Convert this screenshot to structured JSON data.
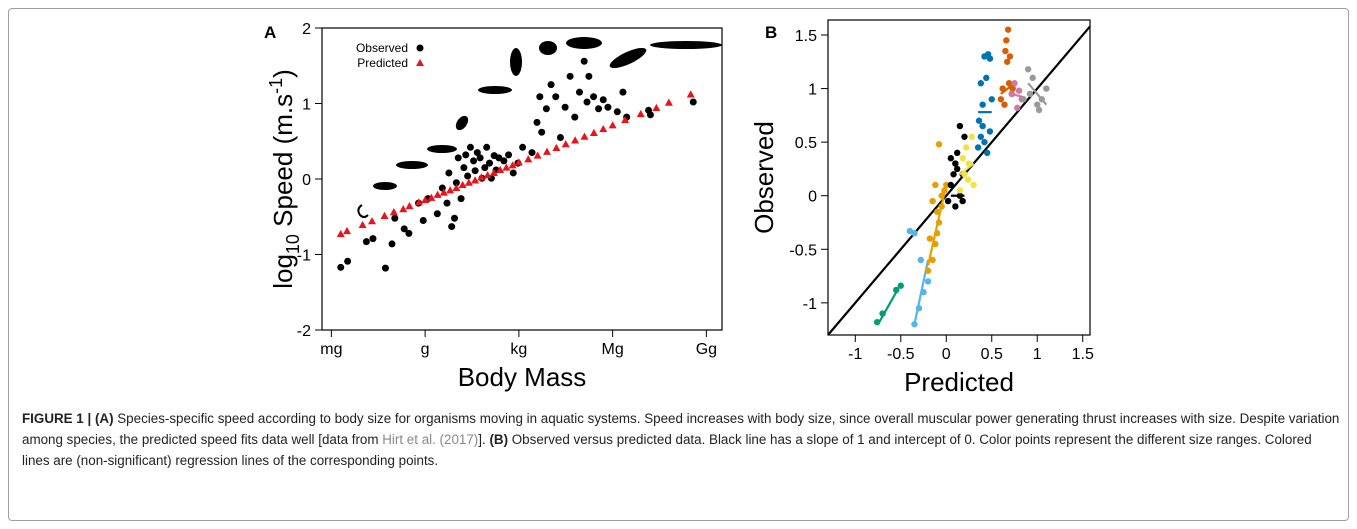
{
  "chart_data": [
    {
      "type": "scatter",
      "panel_label": "A",
      "xlabel": "Body Mass",
      "ylabel": {
        "base": "log",
        "sub": "10",
        "mid": " Speed (m.s",
        "sup": "-1",
        "end": ")"
      },
      "xlim": [
        -3.3,
        9.5
      ],
      "ylim": [
        -2,
        2
      ],
      "xticks": [
        {
          "value": -3,
          "label": "mg"
        },
        {
          "value": 0,
          "label": "g"
        },
        {
          "value": 3,
          "label": "kg"
        },
        {
          "value": 6,
          "label": "Mg"
        },
        {
          "value": 9,
          "label": "Gg"
        }
      ],
      "yticks": [
        -2,
        -1,
        0,
        1,
        2
      ],
      "legend": "upper left",
      "series": [
        {
          "name": "Observed",
          "color": "#000000",
          "marker": "circle",
          "x": [
            -2.7,
            -2.48,
            -1.88,
            -1.67,
            -1.27,
            -1.06,
            -0.97,
            -0.67,
            -0.52,
            -0.21,
            -0.06,
            0.09,
            0.39,
            0.55,
            0.7,
            0.76,
            0.85,
            0.94,
            1.0,
            1.06,
            1.15,
            1.24,
            1.3,
            1.36,
            1.45,
            1.55,
            1.6,
            1.67,
            1.76,
            1.82,
            1.91,
            1.97,
            2.06,
            2.12,
            2.21,
            2.27,
            2.36,
            2.52,
            2.67,
            2.82,
            2.97,
            3.12,
            3.42,
            3.58,
            3.67,
            3.73,
            3.88,
            4.03,
            4.18,
            4.33,
            4.48,
            4.64,
            4.79,
            4.94,
            5.09,
            5.18,
            5.24,
            5.39,
            5.55,
            5.7,
            5.85,
            6.15,
            6.33,
            6.45,
            7.15,
            7.21,
            8.58
          ],
          "y": [
            -1.17,
            -1.09,
            -0.83,
            -0.79,
            -1.18,
            -0.86,
            -0.52,
            -0.66,
            -0.72,
            -0.32,
            -0.55,
            -0.26,
            -0.46,
            -0.12,
            -0.32,
            0.08,
            -0.63,
            -0.52,
            -0.05,
            0.28,
            -0.26,
            0.15,
            0.32,
            0.04,
            0.42,
            0.24,
            0.11,
            0.35,
            0.28,
            0.01,
            0.15,
            0.42,
            0.21,
            0.01,
            0.31,
            0.12,
            0.28,
            0.24,
            0.32,
            0.08,
            0.21,
            0.42,
            0.35,
            0.75,
            1.09,
            0.62,
            0.93,
            1.25,
            1.09,
            0.55,
            0.95,
            1.36,
            0.82,
            1.15,
            1.56,
            1.02,
            1.36,
            1.09,
            0.93,
            1.05,
            0.95,
            0.89,
            1.15,
            0.82,
            0.91,
            0.85,
            1.02
          ]
        },
        {
          "name": "Predicted",
          "color": "#e8141c",
          "marker": "triangle",
          "x": [
            -2.7,
            -2.5,
            -2.0,
            -1.7,
            -1.3,
            -1.0,
            -0.7,
            -0.5,
            -0.2,
            0.0,
            0.2,
            0.4,
            0.6,
            0.8,
            1.0,
            1.2,
            1.4,
            1.6,
            1.8,
            2.0,
            2.2,
            2.4,
            2.6,
            2.8,
            3.0,
            3.3,
            3.6,
            3.9,
            4.2,
            4.5,
            4.8,
            5.1,
            5.4,
            5.7,
            6.0,
            6.4,
            6.9,
            7.4,
            7.8,
            8.5
          ],
          "y": [
            -0.73,
            -0.69,
            -0.61,
            -0.56,
            -0.49,
            -0.44,
            -0.4,
            -0.36,
            -0.31,
            -0.28,
            -0.25,
            -0.21,
            -0.18,
            -0.15,
            -0.12,
            -0.08,
            -0.05,
            -0.02,
            0.02,
            0.05,
            0.08,
            0.12,
            0.15,
            0.18,
            0.22,
            0.26,
            0.31,
            0.36,
            0.41,
            0.46,
            0.51,
            0.56,
            0.61,
            0.66,
            0.71,
            0.78,
            0.86,
            0.94,
            1.01,
            1.12
          ]
        }
      ]
    },
    {
      "type": "scatter",
      "panel_label": "B",
      "xlabel": "Predicted",
      "ylabel": "Observed",
      "xlim": [
        -1.3,
        1.58
      ],
      "ylim": [
        -1.3,
        1.64
      ],
      "xticks": [
        -1,
        -0.5,
        0,
        0.5,
        1,
        1.5
      ],
      "yticks": [
        -1,
        -0.5,
        0,
        0.5,
        1,
        1.5
      ],
      "reference_line": {
        "slope": 1,
        "intercept": 0,
        "color": "#000000"
      },
      "series": [
        {
          "color": "#009e73",
          "x": [
            -0.76,
            -0.7,
            -0.55,
            -0.5
          ],
          "y": [
            -1.18,
            -1.1,
            -0.88,
            -0.84
          ],
          "fit_x": [
            -0.75,
            -0.55
          ],
          "fit_y": [
            -1.2,
            -0.9
          ]
        },
        {
          "color": "#56b4e9",
          "x": [
            -0.35,
            -0.3,
            -0.25,
            -0.2,
            -0.28,
            -0.35,
            -0.4
          ],
          "y": [
            -1.2,
            -1.05,
            -0.9,
            -0.8,
            -0.6,
            -0.35,
            -0.33
          ],
          "fit_x": [
            -0.35,
            -0.2
          ],
          "fit_y": [
            -1.2,
            -0.6
          ]
        },
        {
          "color": "#e69f00",
          "x": [
            -0.2,
            -0.15,
            -0.12,
            -0.1,
            -0.08,
            -0.05,
            -0.18,
            -0.1,
            -0.05,
            -0.02,
            0.0,
            -0.12,
            -0.08,
            -0.15
          ],
          "y": [
            -0.7,
            -0.6,
            -0.45,
            -0.35,
            -0.25,
            -0.1,
            -0.4,
            -0.15,
            0.0,
            0.05,
            0.1,
            0.1,
            0.48,
            -0.05
          ],
          "fit_x": [
            -0.2,
            0.0
          ],
          "fit_y": [
            -0.65,
            0.1
          ]
        },
        {
          "color": "#000000",
          "x": [
            0.02,
            0.05,
            0.08,
            0.1,
            0.12,
            0.15,
            0.18,
            0.2,
            0.05,
            0.1,
            0.15,
            0.12,
            0.18
          ],
          "y": [
            -0.05,
            0.1,
            0.2,
            0.3,
            0.4,
            0.65,
            0.2,
            0.55,
            0.35,
            -0.1,
            0.0,
            0.25,
            -0.05
          ],
          "fit_x": [
            0.05,
            0.2
          ],
          "fit_y": [
            0.0,
            0.0
          ]
        },
        {
          "color": "#f0e442",
          "x": [
            0.15,
            0.2,
            0.22,
            0.25,
            0.28,
            0.3,
            0.18,
            0.24
          ],
          "y": [
            0.05,
            0.2,
            0.45,
            0.3,
            0.55,
            0.1,
            0.35,
            0.15
          ],
          "fit_x": [
            0.15,
            0.3
          ],
          "fit_y": [
            0.2,
            0.3
          ]
        },
        {
          "color": "#0072b2",
          "x": [
            0.35,
            0.38,
            0.4,
            0.42,
            0.45,
            0.48,
            0.5,
            0.38,
            0.42,
            0.46,
            0.4,
            0.36,
            0.44,
            0.48
          ],
          "y": [
            0.45,
            0.55,
            0.65,
            0.5,
            0.4,
            0.6,
            0.9,
            1.05,
            1.3,
            1.32,
            0.85,
            0.7,
            1.1,
            1.28
          ],
          "fit_x": [
            0.35,
            0.5
          ],
          "fit_y": [
            0.78,
            0.78
          ]
        },
        {
          "color": "#d55e00",
          "x": [
            0.6,
            0.62,
            0.65,
            0.66,
            0.68,
            0.7,
            0.72,
            0.64,
            0.69,
            0.67,
            0.73
          ],
          "y": [
            0.9,
            1.0,
            1.35,
            1.45,
            1.55,
            1.3,
            0.95,
            0.85,
            1.05,
            1.25,
            1.0
          ],
          "fit_x": [
            0.6,
            0.75
          ],
          "fit_y": [
            0.95,
            1.05
          ]
        },
        {
          "color": "#cc79a7",
          "x": [
            0.72,
            0.75,
            0.78,
            0.8,
            0.83
          ],
          "y": [
            0.95,
            1.05,
            0.82,
            0.98,
            0.9
          ],
          "fit_x": [
            0.72,
            0.85
          ],
          "fit_y": [
            0.95,
            0.92
          ]
        },
        {
          "color": "#999999",
          "x": [
            0.85,
            0.9,
            0.95,
            1.0,
            1.05,
            1.1,
            0.92,
            1.02
          ],
          "y": [
            0.9,
            1.18,
            1.1,
            0.85,
            0.9,
            1.0,
            0.95,
            0.8
          ],
          "fit_x": [
            0.9,
            1.1
          ],
          "fit_y": [
            1.05,
            0.85
          ]
        }
      ]
    }
  ],
  "caption": [
    {
      "text": "FIGURE 1 | (A)",
      "style": "bold"
    },
    {
      "text": " Species-specific speed according to body size for organisms moving in aquatic systems. Speed increases with body size, since overall muscular power generating thrust increases with size. Despite variation among species, the predicted speed fits data well [data from ",
      "style": "plain"
    },
    {
      "text": "Hirt et al. (2017)",
      "style": "link"
    },
    {
      "text": "]. ",
      "style": "plain"
    },
    {
      "text": "(B)",
      "style": "bold"
    },
    {
      "text": " Observed versus predicted data. Black line has a slope of 1 and intercept of 0. Color points represent the different size ranges. Colored lines are (non-significant) regression lines of the corresponding points.",
      "style": "plain"
    }
  ]
}
